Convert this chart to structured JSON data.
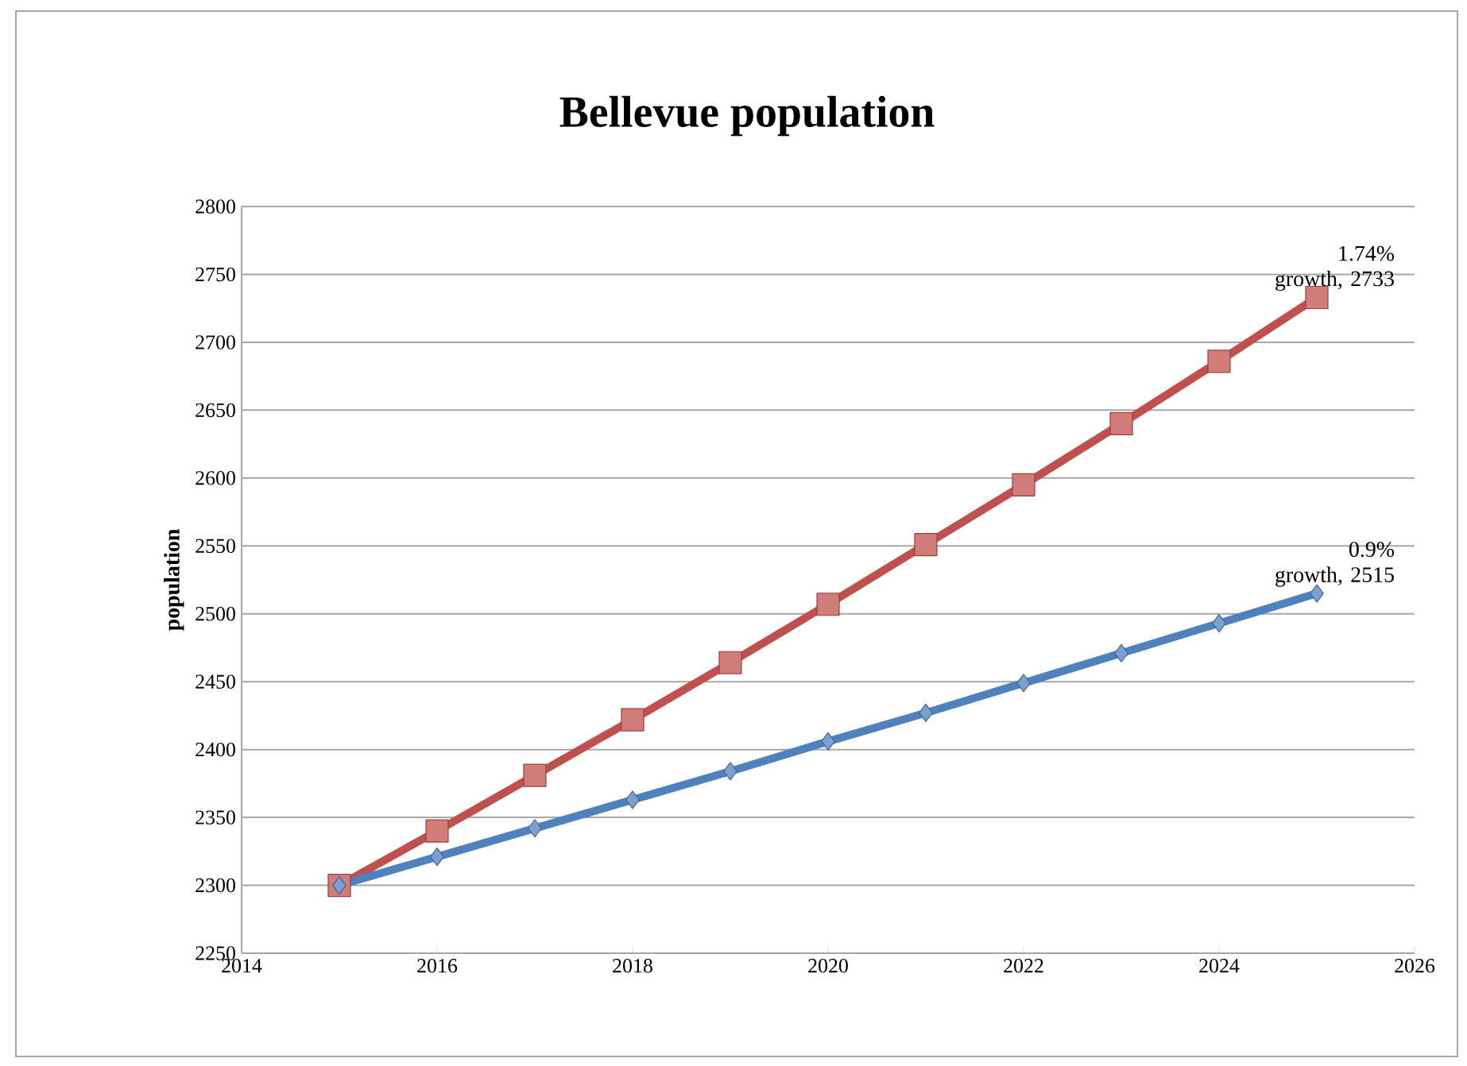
{
  "chart_data": {
    "type": "line",
    "title": "Bellevue population",
    "ylabel": "population",
    "x": [
      2015,
      2016,
      2017,
      2018,
      2019,
      2020,
      2021,
      2022,
      2023,
      2024,
      2025
    ],
    "series": [
      {
        "color": "#c0504d",
        "marker": "square",
        "values": [
          2300,
          2340,
          2381,
          2422,
          2464,
          2507,
          2551,
          2595,
          2640,
          2686,
          2733
        ]
      },
      {
        "color": "#4f81bd",
        "marker": "diamond",
        "values": [
          2300,
          2321,
          2342,
          2363,
          2384,
          2406,
          2427,
          2449,
          2471,
          2493,
          2515
        ]
      }
    ],
    "xlim": [
      2014,
      2026
    ],
    "xticks": [
      2014,
      2016,
      2018,
      2020,
      2022,
      2024,
      2026
    ],
    "ylim": [
      2250,
      2800
    ],
    "yticks": [
      2250,
      2300,
      2350,
      2400,
      2450,
      2500,
      2550,
      2600,
      2650,
      2700,
      2750,
      2800
    ],
    "grid": "y",
    "line_style": "solid",
    "annotations": [
      {
        "text": "1.74% growth, 2733",
        "x": 2025,
        "y": 2733
      },
      {
        "text": "0.9% growth, 2515",
        "x": 2025,
        "y": 2515
      }
    ]
  }
}
